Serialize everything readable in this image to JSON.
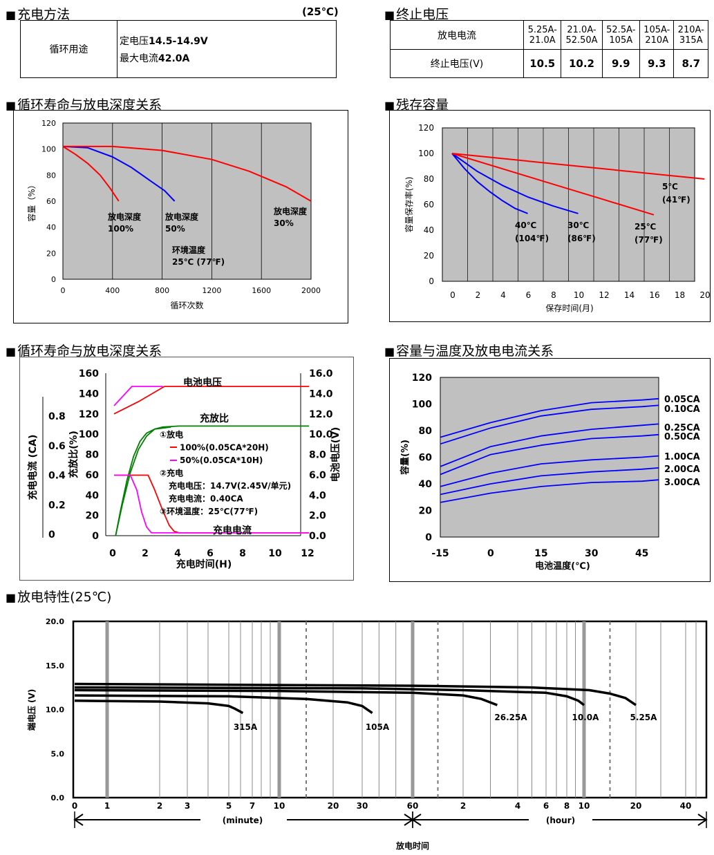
{
  "sections": {
    "charge": {
      "title": "充电方法",
      "temp": "(25℃)",
      "row_label": "循环用途",
      "line1_prefix": "定电压",
      "line1_value": "14.5-14.9V",
      "line2_prefix": "最大电流",
      "line2_value": "42.0A"
    },
    "cutoff": {
      "title": "终止电压",
      "row1_label": "放电电流",
      "row2_label": "终止电压(V)",
      "currents": [
        [
          "5.25A-",
          "21.0A"
        ],
        [
          "21.0A-",
          "52.50A"
        ],
        [
          "52.5A-",
          "105A"
        ],
        [
          "105A-",
          "210A"
        ],
        [
          "210A-",
          "315A"
        ]
      ],
      "voltages": [
        "10.5",
        "10.2",
        "9.9",
        "9.3",
        "8.7"
      ]
    },
    "cycle_title": "循环寿命与放电深度关系",
    "residual_title": "残存容量",
    "charge_char_title": "循环寿命与放电深度关系",
    "temp_title": "容量与温度及放电电流关系",
    "discharge_title": "放电特性(25℃)"
  },
  "chart_data": [
    {
      "id": "cycle-life",
      "type": "line",
      "xlabel": "循环次数",
      "ylabel": "容量（%）",
      "xlim": [
        0,
        2000
      ],
      "ylim": [
        0,
        120
      ],
      "xticks": [
        0,
        400,
        800,
        1200,
        1600,
        2000
      ],
      "yticks": [
        0,
        20,
        40,
        60,
        80,
        100,
        120
      ],
      "grid": "vertical",
      "series": [
        {
          "label_lines": [
            "放电深度",
            "100%"
          ],
          "color": "#ff0000",
          "x": [
            0,
            100,
            200,
            300,
            380,
            450
          ],
          "y": [
            102,
            96,
            89,
            80,
            70,
            60
          ]
        },
        {
          "label_lines": [
            "放电深度",
            "50%"
          ],
          "color": "#0000ff",
          "x": [
            0,
            200,
            400,
            550,
            700,
            820,
            900
          ],
          "y": [
            102,
            101,
            94,
            86,
            76,
            68,
            60
          ]
        },
        {
          "label_lines": [
            "放电深度",
            "30%"
          ],
          "color": "#ff0000",
          "x": [
            0,
            400,
            800,
            1200,
            1500,
            1800,
            2000
          ],
          "y": [
            102,
            102,
            99,
            92,
            83,
            71,
            60
          ]
        }
      ],
      "annotation_lines": [
        "环境温度",
        "25℃ (77℉)"
      ]
    },
    {
      "id": "residual-capacity",
      "type": "line",
      "xlabel": "保存时间(月)",
      "ylabel": "容量保存率(%)",
      "xlim": [
        0,
        20
      ],
      "ylim": [
        0,
        120
      ],
      "xticks": [
        0,
        2,
        4,
        6,
        8,
        10,
        12,
        14,
        16,
        18,
        20
      ],
      "yticks": [
        0,
        20,
        40,
        60,
        80,
        100,
        120
      ],
      "grid": "vertical",
      "series": [
        {
          "label_lines": [
            "40℃",
            "(104℉)"
          ],
          "color": "#0000ff",
          "x": [
            0,
            1,
            2,
            3,
            4,
            5,
            6
          ],
          "y": [
            100,
            88,
            78,
            70,
            63,
            57,
            53
          ]
        },
        {
          "label_lines": [
            "30℃",
            "(86℉)"
          ],
          "color": "#0000ff",
          "x": [
            0,
            2,
            4,
            6,
            8,
            10
          ],
          "y": [
            100,
            86,
            75,
            66,
            59,
            53
          ]
        },
        {
          "label_lines": [
            "25℃",
            "(77℉)"
          ],
          "color": "#ff0000",
          "x": [
            0,
            4,
            8,
            12,
            16
          ],
          "y": [
            100,
            88,
            76,
            64,
            52
          ]
        },
        {
          "label_lines": [
            "5℃",
            "(41℉)"
          ],
          "color": "#ff0000",
          "x": [
            0,
            10,
            20
          ],
          "y": [
            100,
            90,
            80
          ]
        }
      ]
    },
    {
      "id": "charge-characteristics",
      "type": "line",
      "xlabel": "充电时间(H)",
      "ylabel_left": "充放比(%)",
      "ylabel_right": "电池电压(V)",
      "ylabel_far_left": "充电电流 (CA)",
      "xlim": [
        0,
        12
      ],
      "ylim": [
        0,
        160
      ],
      "y2lim": [
        0,
        16
      ],
      "xticks": [
        0,
        2,
        4,
        6,
        8,
        10,
        12
      ],
      "yticks": [
        0,
        20,
        40,
        60,
        80,
        100,
        120,
        140,
        160
      ],
      "y2ticks": [
        "0.0",
        "2.0",
        "4.0",
        "6.0",
        "8.0",
        "10.0",
        "12.0",
        "14.0",
        "16.0"
      ],
      "y3ticks": [
        "0",
        "0.2",
        "0.4",
        "0.6",
        "0.8"
      ],
      "y3lim": [
        0,
        0.8
      ],
      "grid": "none",
      "labels": {
        "voltage": "电池电压",
        "ratio": "充放比",
        "current": "充电电流"
      },
      "legend_lines": [
        "①放电",
        "100%(0.05CA*20H)",
        "50%(0.05CA*10H)",
        "②充电",
        "充电电压：14.7V(2.45V/单元)",
        "充电电流：0.40CA",
        "③环境温度：25℃(77℉)"
      ],
      "series": [
        {
          "name": "voltage-100",
          "color": "#ff0000",
          "axis": "y2",
          "x": [
            0,
            1.5,
            3.1,
            12
          ],
          "y": [
            12.0,
            13.2,
            14.7,
            14.7
          ]
        },
        {
          "name": "voltage-50",
          "color": "#ff00ff",
          "axis": "y2",
          "x": [
            0,
            1.1,
            3.0
          ],
          "y": [
            12.8,
            14.7,
            14.7
          ]
        },
        {
          "name": "ratio-100",
          "color": "#008000",
          "axis": "y",
          "x": [
            0.1,
            0.5,
            1,
            1.5,
            2,
            2.5,
            3,
            4,
            12
          ],
          "y": [
            0,
            30,
            62,
            85,
            98,
            105,
            107,
            108,
            108
          ]
        },
        {
          "name": "ratio-50",
          "color": "#008000",
          "axis": "y",
          "x": [
            0.1,
            0.4,
            0.8,
            1.2,
            1.6,
            2.0,
            2.5,
            3.0,
            3.5
          ],
          "y": [
            0,
            25,
            55,
            78,
            93,
            101,
            105,
            106,
            107
          ]
        },
        {
          "name": "current-100",
          "color": "#ff0000",
          "axis": "y3",
          "x": [
            0,
            2.1,
            2.5,
            3.0,
            3.4,
            3.7,
            4,
            12
          ],
          "y": [
            0.4,
            0.4,
            0.3,
            0.16,
            0.06,
            0.02,
            0.01,
            0.01
          ]
        },
        {
          "name": "current-50",
          "color": "#ff00ff",
          "axis": "y3",
          "x": [
            0,
            1.0,
            1.4,
            1.7,
            2.0,
            2.3,
            12
          ],
          "y": [
            0.4,
            0.4,
            0.3,
            0.15,
            0.05,
            0.01,
            0.01
          ]
        }
      ]
    },
    {
      "id": "temp-capacity",
      "type": "line",
      "xlabel": "电池温度(℃)",
      "ylabel": "容量(%)",
      "xlim": [
        -15,
        50
      ],
      "ylim": [
        0,
        120
      ],
      "xticks": [
        -15,
        0,
        15,
        30,
        45
      ],
      "yticks": [
        0,
        20,
        40,
        60,
        80,
        100,
        120
      ],
      "grid": "none",
      "series": [
        {
          "name": "0.05CA",
          "color": "#0000ff",
          "x": [
            -15,
            0,
            15,
            30,
            45,
            50
          ],
          "y": [
            75,
            86,
            95,
            101,
            103,
            104
          ]
        },
        {
          "name": "0.10CA",
          "color": "#0000ff",
          "x": [
            -15,
            0,
            15,
            30,
            45,
            50
          ],
          "y": [
            70,
            82,
            91,
            96,
            98,
            99
          ]
        },
        {
          "name": "0.25CA",
          "color": "#0000ff",
          "x": [
            -15,
            0,
            15,
            30,
            45,
            50
          ],
          "y": [
            53,
            68,
            76,
            81,
            84,
            85
          ]
        },
        {
          "name": "0.50CA",
          "color": "#0000ff",
          "x": [
            -15,
            0,
            15,
            30,
            45,
            50
          ],
          "y": [
            47,
            62,
            69,
            74,
            76,
            77
          ]
        },
        {
          "name": "1.00CA",
          "color": "#0000ff",
          "x": [
            -15,
            0,
            15,
            30,
            45,
            50
          ],
          "y": [
            38,
            48,
            55,
            58,
            60,
            61
          ]
        },
        {
          "name": "2.00CA",
          "color": "#0000ff",
          "x": [
            -15,
            0,
            15,
            30,
            45,
            50
          ],
          "y": [
            32,
            40,
            46,
            49,
            51,
            52
          ]
        },
        {
          "name": "3.00CA",
          "color": "#0000ff",
          "x": [
            -15,
            0,
            15,
            30,
            45,
            50
          ],
          "y": [
            26,
            33,
            38,
            41,
            42,
            43
          ]
        }
      ]
    },
    {
      "id": "discharge-characteristics",
      "type": "line",
      "xlabel": "放电时间",
      "ylabel": "端电压 (V)",
      "ylim": [
        0,
        20
      ],
      "yticks": [
        "0.0",
        "5.0",
        "10.0",
        "15.0",
        "20.0"
      ],
      "x_scale": "log-minutes",
      "minute_ticks": [
        "0",
        "1",
        "2",
        "3",
        "5",
        "7",
        "10",
        "20",
        "30",
        "60"
      ],
      "hour_ticks": [
        "2",
        "4",
        "6",
        "8",
        "10",
        "20",
        "40"
      ],
      "unit_minute": "(minute)",
      "unit_hour": "(hour)",
      "series": [
        {
          "name": "315A",
          "x_min": [
            0,
            2,
            4,
            5,
            5.5,
            6.2
          ],
          "y": [
            11.0,
            10.9,
            10.7,
            10.4,
            10.1,
            9.6
          ]
        },
        {
          "name": "105A",
          "x_min": [
            0,
            5,
            15,
            25,
            30,
            36
          ],
          "y": [
            11.6,
            11.5,
            11.2,
            10.8,
            10.4,
            9.6
          ]
        },
        {
          "name": "26.25A",
          "x_min": [
            0,
            10,
            60,
            120,
            160,
            195
          ],
          "y": [
            12.2,
            12.1,
            11.9,
            11.6,
            11.2,
            10.5
          ]
        },
        {
          "name": "10.0A",
          "x_min": [
            0,
            30,
            120,
            360,
            480,
            560,
            600
          ],
          "y": [
            12.5,
            12.4,
            12.2,
            11.9,
            11.5,
            11.0,
            10.5
          ]
        },
        {
          "name": "5.25A",
          "x_min": [
            0,
            60,
            300,
            660,
            900,
            1080,
            1200
          ],
          "y": [
            12.9,
            12.7,
            12.5,
            12.2,
            11.8,
            11.3,
            10.5
          ]
        }
      ]
    }
  ]
}
